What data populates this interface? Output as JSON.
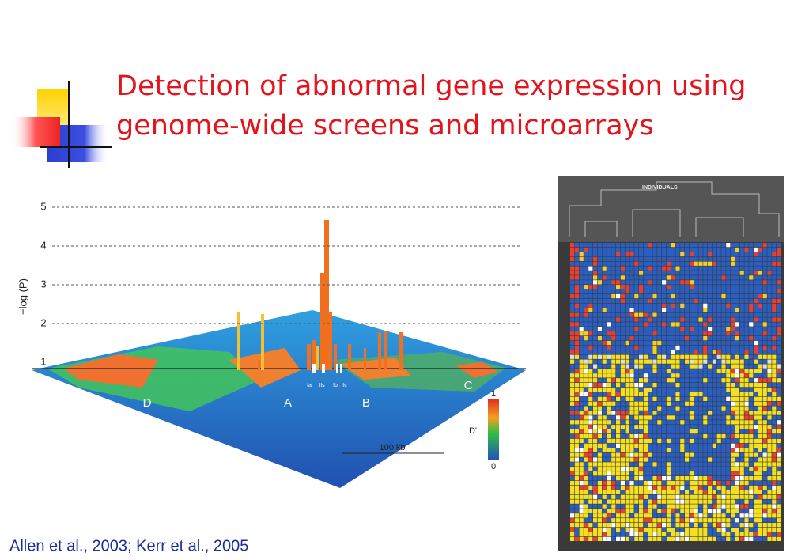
{
  "title_lines": [
    "Detection of abnormal gene expression using",
    "genome-wide screens and microarrays"
  ],
  "citation": "Allen et al., 2003; Kerr et al., 2005",
  "figure_left": {
    "y_axis_label": "−log (P)",
    "y_ticks": [
      1,
      2,
      3,
      4,
      5
    ],
    "regions": [
      "D",
      "A",
      "B",
      "C"
    ],
    "markers": [
      "Ia",
      "IIs",
      "Ib",
      "Ic"
    ],
    "scale_bar": "100 kb",
    "legend": {
      "title": "D'",
      "max": "1",
      "min": "0"
    }
  },
  "figure_right": {
    "header": "INDIVIDUALS"
  }
}
